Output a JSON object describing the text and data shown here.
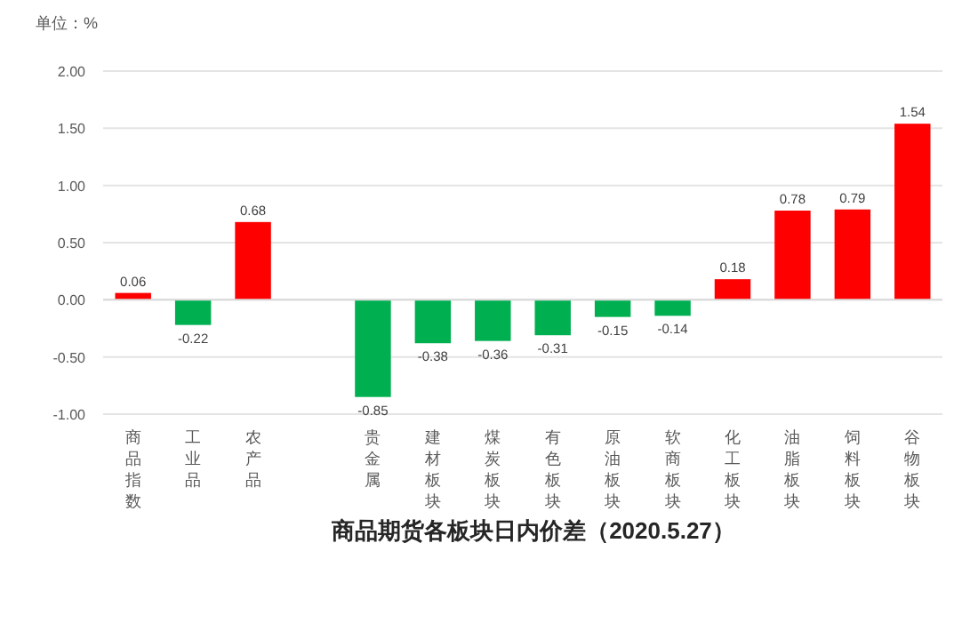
{
  "chart_data": {
    "type": "bar",
    "title": "商品期货各板块日内价差（2020.5.27）",
    "ylabel": "单位：%",
    "categories": [
      "商品指数",
      "工业品",
      "农产品",
      null,
      "贵金属",
      "建材板块",
      "煤炭板块",
      "有色板块",
      "原油板块",
      "软商板块",
      "化工板块",
      "油脂板块",
      "饲料板块",
      "谷物板块"
    ],
    "values": [
      0.06,
      -0.22,
      0.68,
      null,
      -0.85,
      -0.38,
      -0.36,
      -0.31,
      -0.15,
      -0.14,
      0.18,
      0.78,
      0.79,
      1.54
    ],
    "colors": [
      "#ff0000",
      "#00b050",
      "#ff0000",
      null,
      "#00b050",
      "#00b050",
      "#00b050",
      "#00b050",
      "#00b050",
      "#00b050",
      "#ff0000",
      "#ff0000",
      "#ff0000",
      "#ff0000"
    ],
    "ylim": [
      -1,
      2
    ],
    "yticks": [
      {
        "value": -1,
        "label": "-1.00"
      },
      {
        "value": -0.5,
        "label": "-0.50"
      },
      {
        "value": 0,
        "label": "0.00"
      },
      {
        "value": 0.5,
        "label": "0.50"
      },
      {
        "value": 1,
        "label": "1.00"
      },
      {
        "value": 1.5,
        "label": "1.50"
      },
      {
        "value": 2,
        "label": "2.00"
      }
    ],
    "grid": "y",
    "data_labels": true
  }
}
